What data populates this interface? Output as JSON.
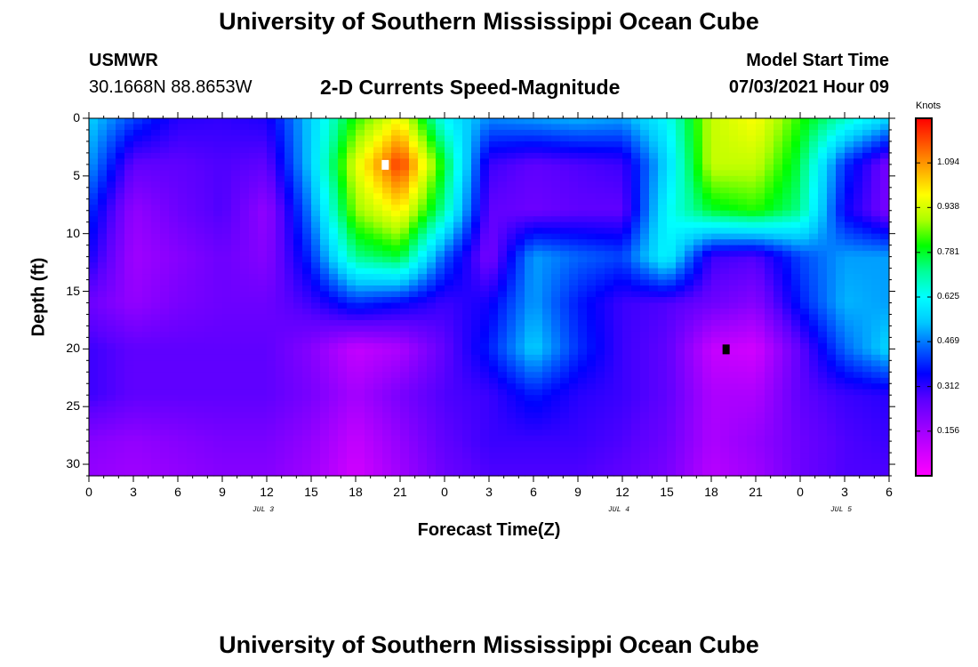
{
  "header": {
    "title": "University of Southern Mississippi Ocean Cube",
    "station_name": "USMWR",
    "station_coords": "30.1668N  88.8653W",
    "plot_title": "2-D Currents Speed-Magnitude",
    "model_label": "Model Start Time",
    "model_time": "07/03/2021 Hour 09"
  },
  "footer": {
    "title": "University of Southern Mississippi Ocean Cube"
  },
  "colors": {
    "colormap": [
      "#ff00ff",
      "#cc00ff",
      "#9400ff",
      "#5a00ff",
      "#0000ff",
      "#0060ff",
      "#00c8ff",
      "#00ffff",
      "#00ff99",
      "#00ff00",
      "#aaff00",
      "#ffff00",
      "#ffaa00",
      "#ff5500",
      "#ff0000"
    ],
    "marker_white": "#ffffff",
    "marker_black": "#000000"
  },
  "chart_data": {
    "type": "heatmap",
    "title": "2-D Currents Speed-Magnitude",
    "xlabel": "Forecast Time(Z)",
    "ylabel": "Depth (ft)",
    "x_range_hours": [
      0,
      54
    ],
    "x_tick_labels": [
      "0",
      "3",
      "6",
      "9",
      "12",
      "15",
      "18",
      "21",
      "0",
      "3",
      "6",
      "9",
      "12",
      "15",
      "18",
      "21",
      "0",
      "3",
      "6"
    ],
    "day_labels": [
      {
        "hour": 12,
        "label": "JUL 3"
      },
      {
        "hour": 36,
        "label": "JUL 4"
      },
      {
        "hour": 51,
        "label": "JUL 5"
      }
    ],
    "ylim": [
      31,
      0
    ],
    "y_ticks": [
      0,
      5,
      10,
      15,
      20,
      25,
      30
    ],
    "colorbar": {
      "label": "Knots",
      "range": [
        0.0,
        1.25
      ],
      "ticks": [
        0.156,
        0.312,
        0.469,
        0.625,
        0.781,
        0.938,
        1.094
      ]
    },
    "depths_ft": [
      0,
      4,
      8,
      12,
      16,
      20,
      24,
      28,
      31
    ],
    "times_hr": [
      0,
      3,
      6,
      9,
      12,
      15,
      18,
      21,
      24,
      27,
      30,
      33,
      36,
      39,
      42,
      45,
      48,
      51,
      54
    ],
    "speed_knots": [
      [
        0.55,
        0.42,
        0.32,
        0.31,
        0.33,
        0.55,
        0.82,
        0.98,
        0.62,
        0.48,
        0.5,
        0.52,
        0.5,
        0.62,
        0.92,
        0.98,
        0.82,
        0.68,
        0.56
      ],
      [
        0.5,
        0.26,
        0.26,
        0.28,
        0.26,
        0.55,
        0.95,
        1.2,
        0.78,
        0.3,
        0.26,
        0.28,
        0.3,
        0.56,
        0.92,
        0.92,
        0.76,
        0.4,
        0.22
      ],
      [
        0.4,
        0.18,
        0.24,
        0.28,
        0.18,
        0.48,
        0.88,
        1.0,
        0.7,
        0.26,
        0.24,
        0.26,
        0.26,
        0.62,
        0.78,
        0.82,
        0.72,
        0.35,
        0.22
      ],
      [
        0.34,
        0.16,
        0.2,
        0.24,
        0.2,
        0.4,
        0.72,
        0.78,
        0.44,
        0.22,
        0.5,
        0.45,
        0.42,
        0.62,
        0.3,
        0.28,
        0.42,
        0.5,
        0.5
      ],
      [
        0.24,
        0.18,
        0.22,
        0.24,
        0.24,
        0.3,
        0.4,
        0.36,
        0.3,
        0.34,
        0.5,
        0.38,
        0.3,
        0.28,
        0.24,
        0.2,
        0.38,
        0.52,
        0.5
      ],
      [
        0.3,
        0.26,
        0.26,
        0.26,
        0.26,
        0.2,
        0.1,
        0.14,
        0.26,
        0.38,
        0.55,
        0.4,
        0.3,
        0.26,
        0.1,
        0.08,
        0.26,
        0.45,
        0.56
      ],
      [
        0.3,
        0.26,
        0.26,
        0.26,
        0.26,
        0.22,
        0.15,
        0.22,
        0.28,
        0.3,
        0.38,
        0.32,
        0.3,
        0.26,
        0.14,
        0.14,
        0.26,
        0.3,
        0.32
      ],
      [
        0.2,
        0.18,
        0.2,
        0.22,
        0.22,
        0.18,
        0.1,
        0.18,
        0.26,
        0.3,
        0.3,
        0.3,
        0.28,
        0.24,
        0.14,
        0.18,
        0.24,
        0.28,
        0.3
      ],
      [
        0.18,
        0.16,
        0.18,
        0.2,
        0.2,
        0.16,
        0.08,
        0.16,
        0.24,
        0.28,
        0.28,
        0.28,
        0.26,
        0.22,
        0.12,
        0.16,
        0.24,
        0.28,
        0.28
      ]
    ],
    "markers": [
      {
        "hour": 20,
        "depth_ft": 4,
        "color": "white"
      },
      {
        "hour": 43,
        "depth_ft": 20,
        "color": "black"
      }
    ]
  }
}
